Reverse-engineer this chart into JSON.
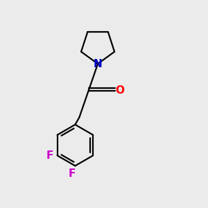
{
  "background_color": "#ebebeb",
  "bond_color": "#000000",
  "N_color": "#0000cc",
  "O_color": "#ff0000",
  "F_color": "#cc00cc",
  "line_width": 1.6,
  "font_size_atom": 11,
  "fig_width": 3.0,
  "fig_height": 3.0,
  "dpi": 100,
  "xlim": [
    0,
    10
  ],
  "ylim": [
    0,
    10
  ]
}
